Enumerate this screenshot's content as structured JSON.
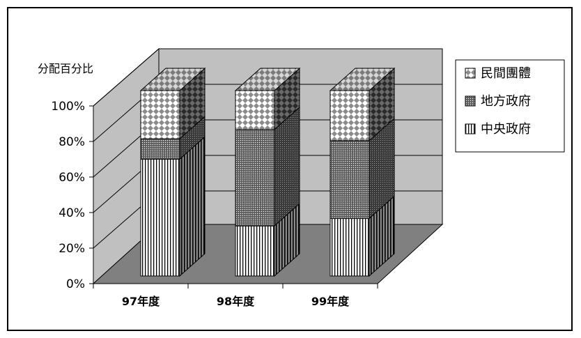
{
  "chart_data": {
    "type": "bar",
    "stacked": true,
    "three_d": true,
    "ylabel": "分配百分比",
    "categories": [
      "97年度",
      "98年度",
      "99年度"
    ],
    "yticks": [
      "0%",
      "20%",
      "40%",
      "60%",
      "80%",
      "100%"
    ],
    "ylim": [
      0,
      100
    ],
    "series": [
      {
        "name": "中央政府",
        "values": [
          63,
          27,
          31
        ],
        "color": "#ffffff",
        "pattern": "vertical-lines"
      },
      {
        "name": "地方政府",
        "values": [
          11,
          52,
          42
        ],
        "color": "#555555",
        "pattern": "dense-dots"
      },
      {
        "name": "民間團體",
        "values": [
          26,
          21,
          27
        ],
        "color": "#bbbbbb",
        "pattern": "diamond-checker"
      }
    ],
    "legend_order": [
      "民間團體",
      "地方政府",
      "中央政府"
    ],
    "legend": "right",
    "grid": true,
    "wall_color": "#c0c0c0",
    "floor_color": "#808080"
  }
}
